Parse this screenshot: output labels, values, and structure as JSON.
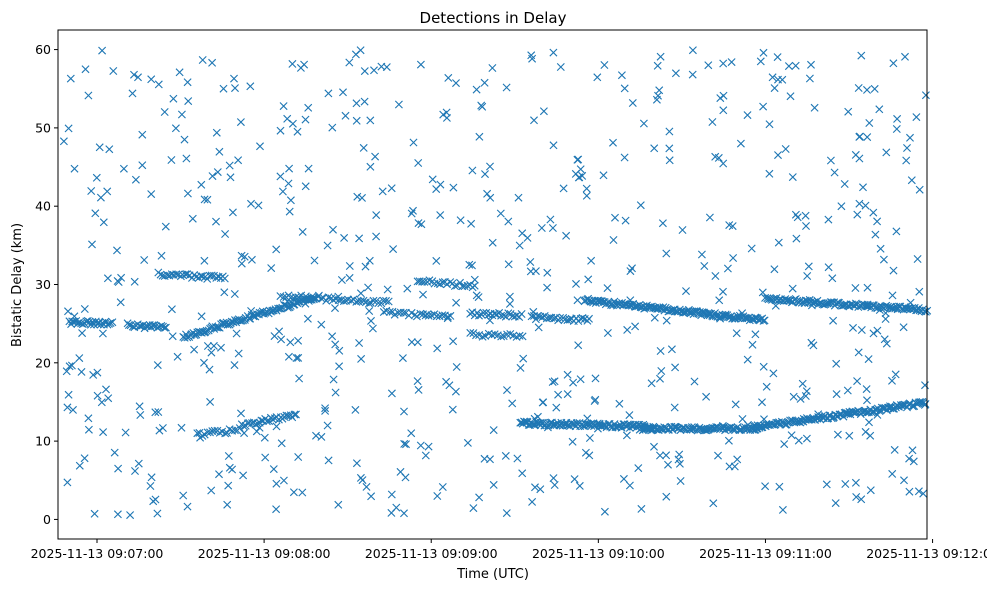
{
  "chart_data": {
    "type": "scatter",
    "title": "Detections in Delay",
    "xlabel": "Time (UTC)",
    "ylabel": "Bistatic Delay (km)",
    "marker": "x",
    "color": "#1f77b4",
    "grid": false,
    "xlim": [
      "2025-11-13 09:06:46",
      "2025-11-13 09:11:58"
    ],
    "ylim": [
      -2.5,
      62.5
    ],
    "xticks": [
      "2025-11-13 09:07:00",
      "2025-11-13 09:08:00",
      "2025-11-13 09:09:00",
      "2025-11-13 09:10:00",
      "2025-11-13 09:11:00",
      "2025-11-13 09:12:00"
    ],
    "yticks": [
      0,
      10,
      20,
      30,
      40,
      50,
      60
    ],
    "tracks": [
      {
        "t_start": "2025-11-13 09:06:50",
        "t_end": "2025-11-13 09:07:06",
        "delay_start": 25.2,
        "delay_end": 25.0,
        "spacing_s": 0.6
      },
      {
        "t_start": "2025-11-13 09:07:11",
        "t_end": "2025-11-13 09:07:25",
        "delay_start": 24.8,
        "delay_end": 24.5,
        "spacing_s": 0.6
      },
      {
        "t_start": "2025-11-13 09:07:22",
        "t_end": "2025-11-13 09:07:46",
        "delay_start": 31.3,
        "delay_end": 30.8,
        "spacing_s": 0.8
      },
      {
        "t_start": "2025-11-13 09:07:31",
        "t_end": "2025-11-13 09:08:18",
        "delay_start": 23.3,
        "delay_end": 28.3,
        "spacing_s": 0.5
      },
      {
        "t_start": "2025-11-13 09:08:06",
        "t_end": "2025-11-13 09:08:45",
        "delay_start": 28.5,
        "delay_end": 27.7,
        "spacing_s": 0.9
      },
      {
        "t_start": "2025-11-13 09:08:43",
        "t_end": "2025-11-13 09:09:07",
        "delay_start": 26.5,
        "delay_end": 25.8,
        "spacing_s": 1.0
      },
      {
        "t_start": "2025-11-13 09:08:55",
        "t_end": "2025-11-13 09:09:16",
        "delay_start": 30.5,
        "delay_end": 29.8,
        "spacing_s": 0.9
      },
      {
        "t_start": "2025-11-13 09:09:14",
        "t_end": "2025-11-13 09:09:33",
        "delay_start": 26.3,
        "delay_end": 26.0,
        "spacing_s": 0.8
      },
      {
        "t_start": "2025-11-13 09:09:14",
        "t_end": "2025-11-13 09:09:33",
        "delay_start": 23.6,
        "delay_end": 23.4,
        "spacing_s": 1.1
      },
      {
        "t_start": "2025-11-13 09:09:36",
        "t_end": "2025-11-13 09:09:57",
        "delay_start": 25.8,
        "delay_end": 25.5,
        "spacing_s": 0.8
      },
      {
        "t_start": "2025-11-13 09:09:55",
        "t_end": "2025-11-13 09:11:00",
        "delay_start": 28.0,
        "delay_end": 25.4,
        "spacing_s": 0.45
      },
      {
        "t_start": "2025-11-13 09:11:00",
        "t_end": "2025-11-13 09:11:58",
        "delay_start": 28.2,
        "delay_end": 26.7,
        "spacing_s": 0.5
      },
      {
        "t_start": "2025-11-13 09:09:32",
        "t_end": "2025-11-13 09:10:20",
        "delay_start": 12.3,
        "delay_end": 11.8,
        "spacing_s": 0.45
      },
      {
        "t_start": "2025-11-13 09:10:15",
        "t_end": "2025-11-13 09:10:58",
        "delay_start": 11.6,
        "delay_end": 11.6,
        "spacing_s": 0.45
      },
      {
        "t_start": "2025-11-13 09:10:55",
        "t_end": "2025-11-13 09:11:58",
        "delay_start": 11.7,
        "delay_end": 14.9,
        "spacing_s": 0.45
      },
      {
        "t_start": "2025-11-13 09:07:36",
        "t_end": "2025-11-13 09:07:52",
        "delay_start": 10.8,
        "delay_end": 11.5,
        "spacing_s": 0.9
      },
      {
        "t_start": "2025-11-13 09:07:52",
        "t_end": "2025-11-13 09:08:12",
        "delay_start": 12.0,
        "delay_end": 13.4,
        "spacing_s": 0.7
      }
    ],
    "noise": {
      "t_start": "2025-11-13 09:06:48",
      "t_end": "2025-11-13 09:11:58",
      "delay_min": 0.5,
      "delay_max": 60.0,
      "count": 680
    }
  }
}
